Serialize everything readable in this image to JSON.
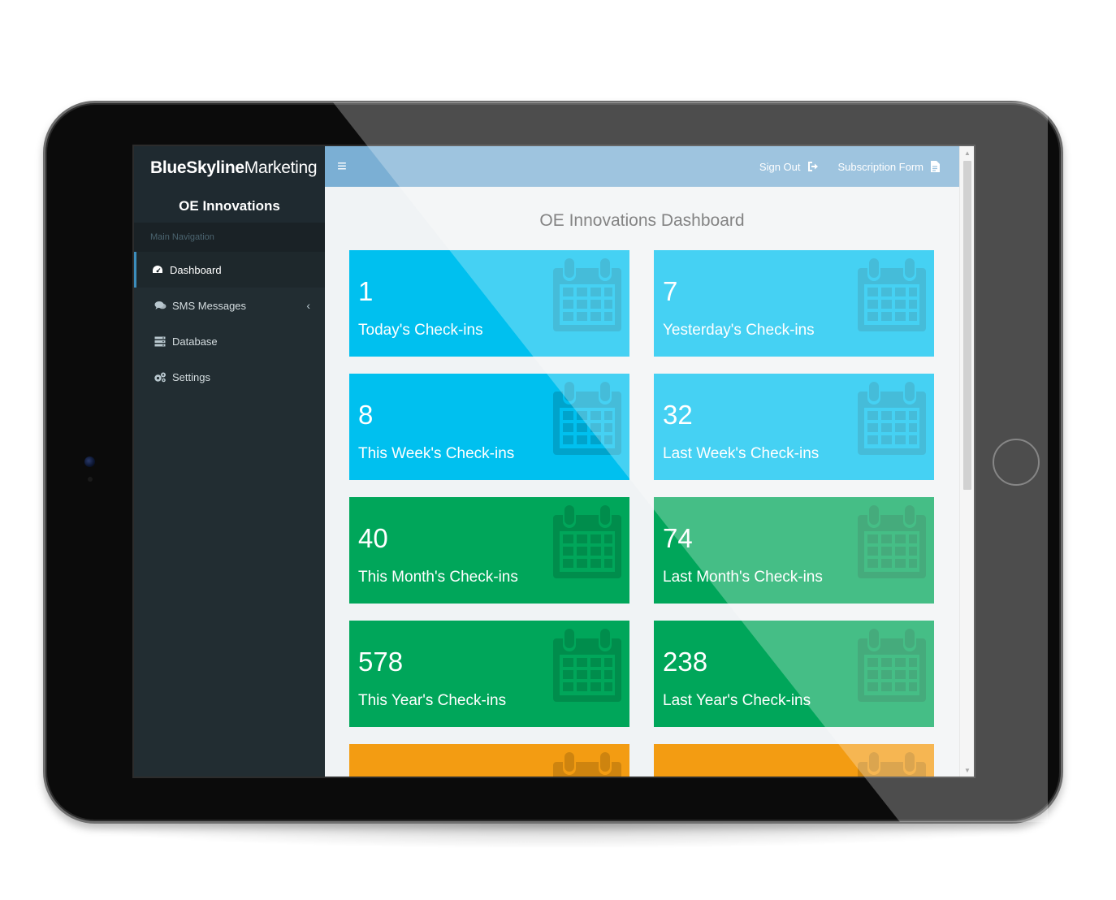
{
  "brand": {
    "bold": "BlueSkyline",
    "light": "Marketing"
  },
  "org_name": "OE Innovations",
  "nav": {
    "header": "Main Navigation",
    "items": [
      {
        "label": "Dashboard",
        "icon": "dashboard-icon"
      },
      {
        "label": "SMS Messages",
        "icon": "comments-icon",
        "chevron": "‹"
      },
      {
        "label": "Database",
        "icon": "database-icon"
      },
      {
        "label": "Settings",
        "icon": "gears-icon"
      }
    ]
  },
  "topbar": {
    "menu_icon": "≡",
    "sign_out": "Sign Out",
    "subscription": "Subscription Form"
  },
  "page_title": "OE Innovations Dashboard",
  "tiles": [
    {
      "value": "1",
      "label": "Today's Check-ins",
      "color": "#00c0ef"
    },
    {
      "value": "7",
      "label": "Yesterday's Check-ins",
      "color": "#00c0ef"
    },
    {
      "value": "8",
      "label": "This Week's Check-ins",
      "color": "#00c0ef"
    },
    {
      "value": "32",
      "label": "Last Week's Check-ins",
      "color": "#00c0ef"
    },
    {
      "value": "40",
      "label": "This Month's Check-ins",
      "color": "#00a65a"
    },
    {
      "value": "74",
      "label": "Last Month's Check-ins",
      "color": "#00a65a"
    },
    {
      "value": "578",
      "label": "This Year's Check-ins",
      "color": "#00a65a"
    },
    {
      "value": "238",
      "label": "Last Year's Check-ins",
      "color": "#00a65a"
    },
    {
      "value": "",
      "label": "",
      "color": "#f39c12"
    },
    {
      "value": "",
      "label": "",
      "color": "#f39c12"
    }
  ]
}
